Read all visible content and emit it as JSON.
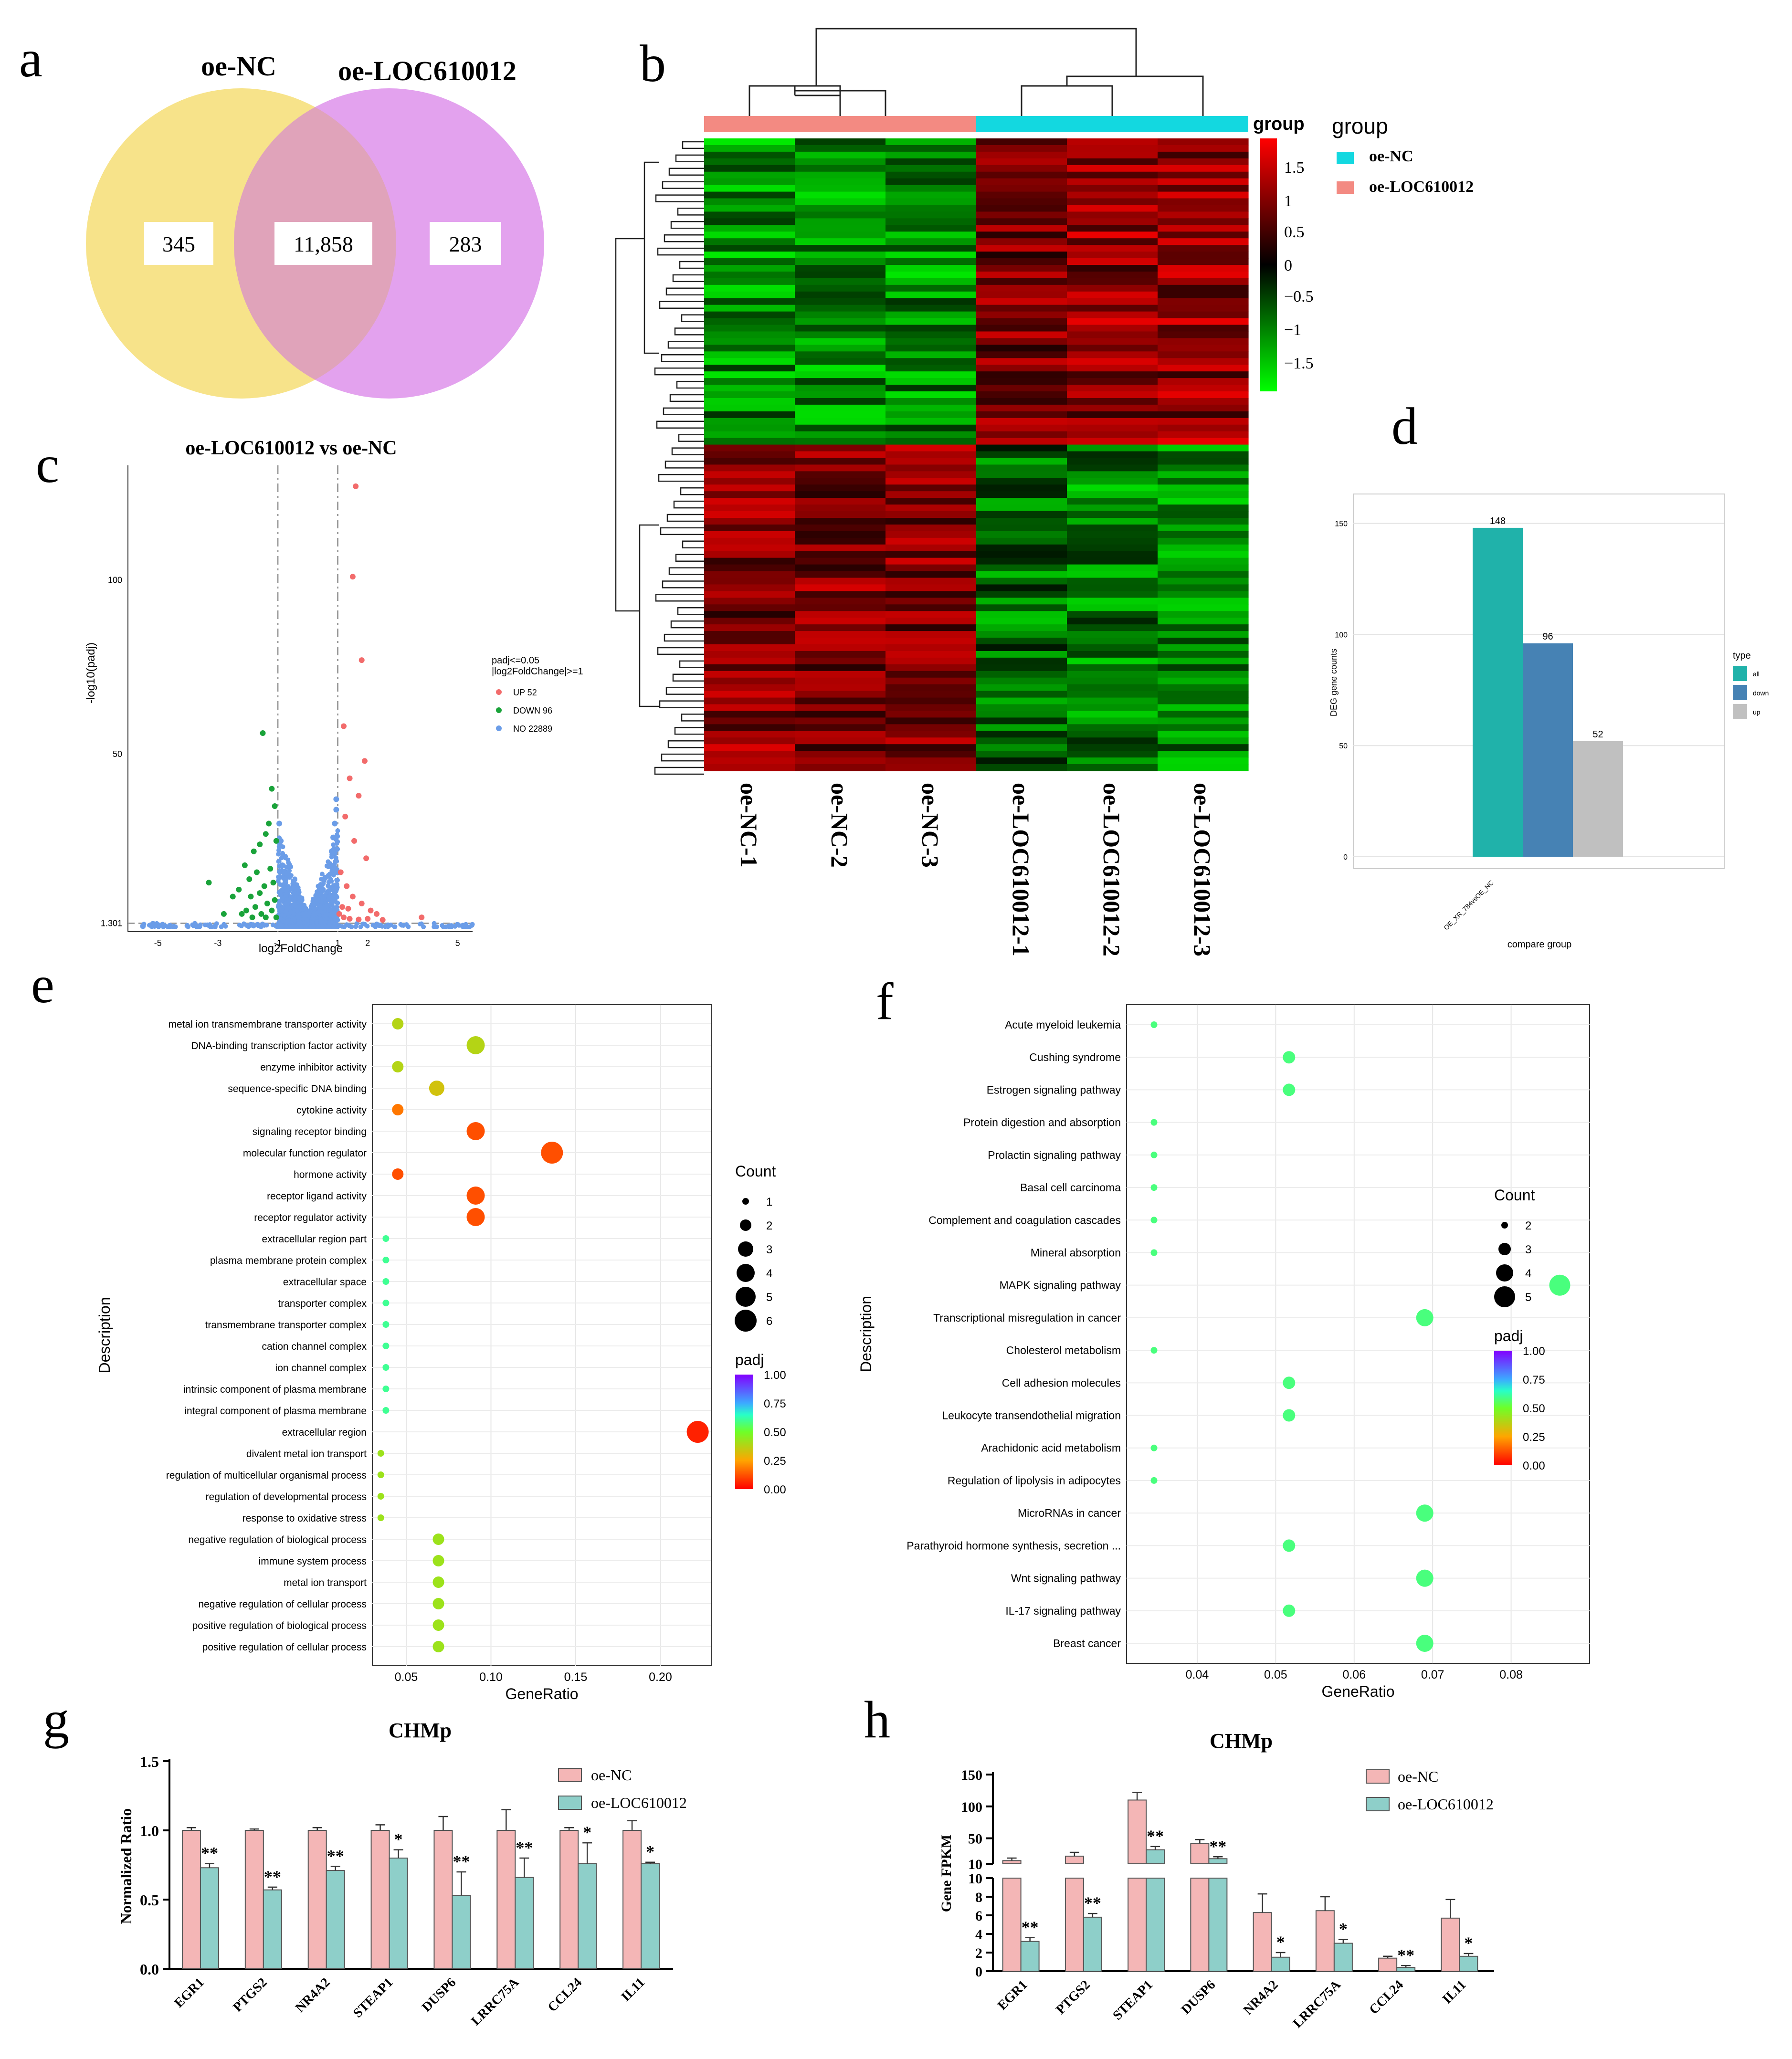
{
  "panel_labels": [
    "a",
    "b",
    "c",
    "d",
    "e",
    "f",
    "g",
    "h"
  ],
  "chart_data": [
    {
      "panel": "a",
      "type": "venn",
      "set_labels": [
        "oe-NC",
        "oe-LOC610012"
      ],
      "values": [
        "345",
        "11,858",
        "283"
      ],
      "colors": [
        "#f7e38a",
        "#e3a2ee",
        "#e0a3ba"
      ]
    },
    {
      "panel": "b",
      "type": "heatmap",
      "columns": [
        "oe-NC-1",
        "oe-NC-2",
        "oe-NC-3",
        "oe-LOC610012-1",
        "oe-LOC610012-2",
        "oe-LOC610012-3"
      ],
      "legend_title": "group",
      "groups": [
        {
          "name": "oe-NC",
          "color": "#13d8e0"
        },
        {
          "name": "oe-LOC610012",
          "color": "#f38a82"
        }
      ],
      "colorbar_title": "group",
      "colorbar_ticks": [
        "1.5",
        "1",
        "0.5",
        "0",
        "−0.5",
        "−1",
        "−1.5"
      ],
      "colorbar_range": [
        -1.8,
        1.8
      ],
      "colors": {
        "low": "#00ff00",
        "mid": "#000000",
        "high": "#ff0000"
      }
    },
    {
      "panel": "c",
      "type": "scatter",
      "title": "oe-LOC610012  vs  oe-NC",
      "xlabel": "log2FoldChange",
      "ylabel": "-log10(padj)",
      "x_ticks": [
        -5,
        -3,
        -1,
        1,
        2,
        5
      ],
      "y_ticks": [
        "1.301",
        "50",
        "100"
      ],
      "xlim": [
        -6,
        5.5
      ],
      "ylim": [
        0,
        130
      ],
      "legend_title": [
        "padj<=0.05",
        "|log2FoldChange|>=1"
      ],
      "legend": [
        {
          "label": "UP 52",
          "color": "#f26b6b"
        },
        {
          "label": "DOWN 96",
          "color": "#1aa33a"
        },
        {
          "label": "NO 22889",
          "color": "#6b9de8"
        }
      ],
      "up_points": [
        [
          1.6,
          127
        ],
        [
          1.5,
          101
        ],
        [
          1.8,
          77
        ],
        [
          1.2,
          58
        ],
        [
          1.9,
          48
        ],
        [
          1.4,
          43
        ],
        [
          1.7,
          38
        ],
        [
          1.25,
          32
        ],
        [
          1.55,
          25
        ],
        [
          1.95,
          20
        ],
        [
          1.1,
          16
        ],
        [
          1.3,
          12
        ],
        [
          1.5,
          9
        ],
        [
          1.8,
          7
        ],
        [
          2.1,
          5
        ],
        [
          2.3,
          4
        ],
        [
          1.05,
          4
        ],
        [
          1.2,
          3
        ],
        [
          1.4,
          2.6
        ],
        [
          1.7,
          2.4
        ],
        [
          2,
          2.6
        ],
        [
          2.5,
          2.3
        ],
        [
          3.8,
          3
        ],
        [
          1.15,
          6
        ],
        [
          1.35,
          5.5
        ]
      ],
      "down_points": [
        [
          -1.5,
          56
        ],
        [
          -1.2,
          40
        ],
        [
          -1.1,
          35
        ],
        [
          -1.3,
          30
        ],
        [
          -1.4,
          27
        ],
        [
          -1.05,
          25
        ],
        [
          -1.6,
          24
        ],
        [
          -1.8,
          22
        ],
        [
          -2.1,
          18
        ],
        [
          -1.25,
          17
        ],
        [
          -1.7,
          16
        ],
        [
          -1.95,
          14
        ],
        [
          -1.15,
          13
        ],
        [
          -1.45,
          12
        ],
        [
          -2.3,
          11
        ],
        [
          -3.3,
          13
        ],
        [
          -1.6,
          10
        ],
        [
          -1.9,
          9
        ],
        [
          -1.1,
          8
        ],
        [
          -2.5,
          9
        ],
        [
          -1.35,
          7
        ],
        [
          -1.75,
          6
        ],
        [
          -2.05,
          5
        ],
        [
          -1.2,
          5
        ],
        [
          -1.55,
          4
        ],
        [
          -2.2,
          4
        ],
        [
          -1.05,
          3
        ],
        [
          -1.4,
          3
        ],
        [
          -1.85,
          3
        ],
        [
          -2.8,
          4
        ]
      ]
    },
    {
      "panel": "d",
      "type": "bar",
      "categories": [
        "OE_XR_784vsOE_NC"
      ],
      "xlabel": "compare group",
      "ylabel": "DEG gene counts",
      "ylim": [
        0,
        160
      ],
      "y_ticks": [
        0,
        50,
        100,
        150
      ],
      "legend_title": "type",
      "series": [
        {
          "name": "all",
          "values": [
            148
          ],
          "color": "#20b2aa"
        },
        {
          "name": "down",
          "values": [
            96
          ],
          "color": "#4682b4"
        },
        {
          "name": "up",
          "values": [
            52
          ],
          "color": "#c0c0c0"
        }
      ]
    },
    {
      "panel": "e",
      "type": "scatter",
      "xlabel": "GeneRatio",
      "ylabel": "Description",
      "xlim": [
        0.03,
        0.23
      ],
      "x_ticks": [
        "0.05",
        "0.10",
        "0.15",
        "0.20"
      ],
      "count_title": "Count",
      "count_ticks": [
        1,
        2,
        3,
        4,
        5,
        6
      ],
      "padj_title": "padj",
      "padj_ticks": [
        "1.00",
        "0.75",
        "0.50",
        "0.25",
        "0.00"
      ],
      "terms": [
        {
          "label": "metal ion transmembrane transporter activity",
          "ratio": 0.045,
          "count": 2,
          "padj": 0.38
        },
        {
          "label": "DNA-binding transcription factor activity",
          "ratio": 0.091,
          "count": 4,
          "padj": 0.38
        },
        {
          "label": "enzyme inhibitor activity",
          "ratio": 0.045,
          "count": 2,
          "padj": 0.38
        },
        {
          "label": "sequence-specific DNA binding",
          "ratio": 0.068,
          "count": 3,
          "padj": 0.33
        },
        {
          "label": "cytokine activity",
          "ratio": 0.045,
          "count": 2,
          "padj": 0.18
        },
        {
          "label": "signaling receptor binding",
          "ratio": 0.091,
          "count": 4,
          "padj": 0.12
        },
        {
          "label": "molecular function regulator",
          "ratio": 0.136,
          "count": 6,
          "padj": 0.12
        },
        {
          "label": "hormone activity",
          "ratio": 0.045,
          "count": 2,
          "padj": 0.12
        },
        {
          "label": "receptor ligand activity",
          "ratio": 0.091,
          "count": 4,
          "padj": 0.12
        },
        {
          "label": "receptor regulator activity",
          "ratio": 0.091,
          "count": 4,
          "padj": 0.12
        },
        {
          "label": "extracellular region part",
          "ratio": 0.038,
          "count": 1,
          "padj": 0.6
        },
        {
          "label": "plasma membrane protein complex",
          "ratio": 0.038,
          "count": 1,
          "padj": 0.6
        },
        {
          "label": "extracellular space",
          "ratio": 0.038,
          "count": 1,
          "padj": 0.6
        },
        {
          "label": "transporter complex",
          "ratio": 0.038,
          "count": 1,
          "padj": 0.6
        },
        {
          "label": "transmembrane transporter complex",
          "ratio": 0.038,
          "count": 1,
          "padj": 0.6
        },
        {
          "label": "cation channel complex",
          "ratio": 0.038,
          "count": 1,
          "padj": 0.6
        },
        {
          "label": "ion channel complex",
          "ratio": 0.038,
          "count": 1,
          "padj": 0.6
        },
        {
          "label": "intrinsic component of plasma membrane",
          "ratio": 0.038,
          "count": 1,
          "padj": 0.6
        },
        {
          "label": "integral component of plasma membrane",
          "ratio": 0.038,
          "count": 1,
          "padj": 0.6
        },
        {
          "label": "extracellular region",
          "ratio": 0.222,
          "count": 6,
          "padj": 0.05
        },
        {
          "label": "divalent metal ion transport",
          "ratio": 0.035,
          "count": 1,
          "padj": 0.42
        },
        {
          "label": "regulation of multicellular organismal process",
          "ratio": 0.035,
          "count": 1,
          "padj": 0.42
        },
        {
          "label": "regulation of developmental process",
          "ratio": 0.035,
          "count": 1,
          "padj": 0.42
        },
        {
          "label": "response to oxidative stress",
          "ratio": 0.035,
          "count": 1,
          "padj": 0.42
        },
        {
          "label": "negative regulation of biological process",
          "ratio": 0.069,
          "count": 2,
          "padj": 0.42
        },
        {
          "label": "immune system process",
          "ratio": 0.069,
          "count": 2,
          "padj": 0.42
        },
        {
          "label": "metal ion transport",
          "ratio": 0.069,
          "count": 2,
          "padj": 0.42
        },
        {
          "label": "negative regulation of cellular process",
          "ratio": 0.069,
          "count": 2,
          "padj": 0.42
        },
        {
          "label": "positive regulation of biological process",
          "ratio": 0.069,
          "count": 2,
          "padj": 0.42
        },
        {
          "label": "positive regulation of cellular process",
          "ratio": 0.069,
          "count": 2,
          "padj": 0.42
        }
      ]
    },
    {
      "panel": "f",
      "type": "scatter",
      "xlabel": "GeneRatio",
      "ylabel": "Description",
      "xlim": [
        0.031,
        0.09
      ],
      "x_ticks": [
        "0.04",
        "0.05",
        "0.06",
        "0.07",
        "0.08"
      ],
      "count_title": "Count",
      "count_ticks": [
        2,
        3,
        4,
        5
      ],
      "padj_title": "padj",
      "padj_ticks": [
        "1.00",
        "0.75",
        "0.50",
        "0.25",
        "0.00"
      ],
      "terms": [
        {
          "label": "Acute myeloid leukemia",
          "ratio": 0.0345,
          "count": 2,
          "padj": 0.58
        },
        {
          "label": "Cushing syndrome",
          "ratio": 0.0517,
          "count": 3,
          "padj": 0.58
        },
        {
          "label": "Estrogen signaling pathway",
          "ratio": 0.0517,
          "count": 3,
          "padj": 0.58
        },
        {
          "label": "Protein digestion and absorption",
          "ratio": 0.0345,
          "count": 2,
          "padj": 0.58
        },
        {
          "label": "Prolactin signaling pathway",
          "ratio": 0.0345,
          "count": 2,
          "padj": 0.58
        },
        {
          "label": "Basal cell carcinoma",
          "ratio": 0.0345,
          "count": 2,
          "padj": 0.58
        },
        {
          "label": "Complement and coagulation cascades",
          "ratio": 0.0345,
          "count": 2,
          "padj": 0.58
        },
        {
          "label": "Mineral absorption",
          "ratio": 0.0345,
          "count": 2,
          "padj": 0.58
        },
        {
          "label": "MAPK signaling pathway",
          "ratio": 0.0862,
          "count": 5,
          "padj": 0.58
        },
        {
          "label": "Transcriptional misregulation in cancer",
          "ratio": 0.069,
          "count": 4,
          "padj": 0.58
        },
        {
          "label": "Cholesterol metabolism",
          "ratio": 0.0345,
          "count": 2,
          "padj": 0.58
        },
        {
          "label": "Cell adhesion molecules",
          "ratio": 0.0517,
          "count": 3,
          "padj": 0.58
        },
        {
          "label": "Leukocyte transendothelial migration",
          "ratio": 0.0517,
          "count": 3,
          "padj": 0.58
        },
        {
          "label": "Arachidonic acid metabolism",
          "ratio": 0.0345,
          "count": 2,
          "padj": 0.58
        },
        {
          "label": "Regulation of lipolysis in adipocytes",
          "ratio": 0.0345,
          "count": 2,
          "padj": 0.58
        },
        {
          "label": "MicroRNAs in cancer",
          "ratio": 0.069,
          "count": 4,
          "padj": 0.58
        },
        {
          "label": "Parathyroid hormone synthesis, secretion ...",
          "ratio": 0.0517,
          "count": 3,
          "padj": 0.58
        },
        {
          "label": "Wnt signaling pathway",
          "ratio": 0.069,
          "count": 4,
          "padj": 0.58
        },
        {
          "label": "IL-17 signaling pathway",
          "ratio": 0.0517,
          "count": 3,
          "padj": 0.58
        },
        {
          "label": "Breast cancer",
          "ratio": 0.069,
          "count": 4,
          "padj": 0.58
        }
      ]
    },
    {
      "panel": "g",
      "type": "bar",
      "title": "CHMp",
      "ylabel": "Normalized Ratio",
      "ylim": [
        0,
        1.5
      ],
      "y_ticks": [
        "0.0",
        "0.5",
        "1.0",
        "1.5"
      ],
      "categories": [
        "EGR1",
        "PTGS2",
        "NR4A2",
        "STEAP1",
        "DUSP6",
        "LRRC75A",
        "CCL24",
        "IL11"
      ],
      "series": [
        {
          "name": "oe-NC",
          "values": [
            1.0,
            1.0,
            1.0,
            1.0,
            1.0,
            1.0,
            1.0,
            1.0
          ],
          "err": [
            0.02,
            0.01,
            0.02,
            0.04,
            0.1,
            0.15,
            0.02,
            0.07
          ],
          "color": "#f4b6b6"
        },
        {
          "name": "oe-LOC610012",
          "values": [
            0.73,
            0.57,
            0.71,
            0.8,
            0.53,
            0.66,
            0.76,
            0.76
          ],
          "err": [
            0.03,
            0.02,
            0.03,
            0.06,
            0.17,
            0.14,
            0.15,
            0.01
          ],
          "color": "#8ecfc9"
        }
      ],
      "significance": [
        "**",
        "**",
        "**",
        "*",
        "**",
        "**",
        "*",
        "*"
      ]
    },
    {
      "panel": "h",
      "type": "bar",
      "title": "CHMp",
      "ylabel": "Gene FPKM",
      "y_ticks_upper": [
        "10",
        "50",
        "100",
        "150"
      ],
      "y_ticks_lower": [
        "0",
        "2",
        "4",
        "6",
        "8",
        "10"
      ],
      "categories": [
        "EGR1",
        "PTGS2",
        "STEAP1",
        "DUSP6",
        "NR4A2",
        "LRRC75A",
        "CCL24",
        "IL11"
      ],
      "series": [
        {
          "name": "oe-NC",
          "values": [
            15,
            22,
            110,
            42,
            6.3,
            6.5,
            1.4,
            5.7
          ],
          "err": [
            4,
            6,
            12,
            6,
            2.0,
            1.5,
            0.2,
            2.0
          ],
          "color": "#f4b6b6"
        },
        {
          "name": "oe-LOC610012",
          "values": [
            3.2,
            5.8,
            32,
            18,
            1.5,
            3.0,
            0.4,
            1.6
          ],
          "err": [
            0.4,
            0.4,
            5,
            3,
            0.5,
            0.4,
            0.2,
            0.3
          ],
          "color": "#8ecfc9"
        }
      ],
      "significance": [
        "**",
        "**",
        "**",
        "**",
        "*",
        "*",
        "**",
        "*"
      ]
    }
  ]
}
